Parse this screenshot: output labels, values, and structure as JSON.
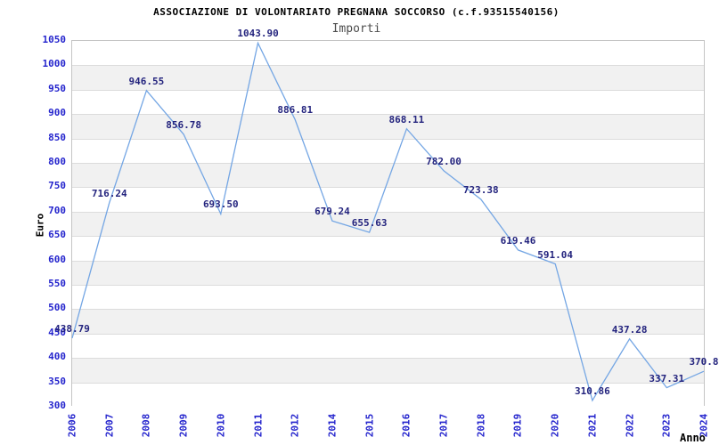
{
  "header": {
    "title": "ASSOCIAZIONE DI VOLONTARIATO PREGNANA SOCCORSO (c.f.93515540156)",
    "subtitle": "Importi"
  },
  "y_axis": {
    "label": "Euro",
    "min": 300,
    "max": 1050,
    "step": 50,
    "tick_labels": [
      "1050",
      "1000",
      "950",
      "900",
      "850",
      "800",
      "750",
      "700",
      "650",
      "600",
      "550",
      "500",
      "450",
      "400",
      "350",
      "300"
    ],
    "tick_color": "#2424cd"
  },
  "x_axis": {
    "label": "Anno",
    "tick_labels": [
      "2006",
      "2007",
      "2008",
      "2009",
      "2010",
      "2011",
      "2012",
      "2014",
      "2015",
      "2016",
      "2017",
      "2018",
      "2019",
      "2020",
      "2021",
      "2022",
      "2023",
      "2024"
    ],
    "tick_color": "#2424cd"
  },
  "chart_data": {
    "type": "line",
    "title": "ASSOCIAZIONE DI VOLONTARIATO PREGNANA SOCCORSO (c.f.93515540156)",
    "subtitle": "Importi",
    "xlabel": "Anno",
    "ylabel": "Euro",
    "x": [
      "2006",
      "2007",
      "2008",
      "2009",
      "2010",
      "2011",
      "2012",
      "2014",
      "2015",
      "2016",
      "2017",
      "2018",
      "2019",
      "2020",
      "2021",
      "2022",
      "2023",
      "2024"
    ],
    "values": [
      438.79,
      716.24,
      946.55,
      856.78,
      693.5,
      1043.9,
      886.81,
      679.24,
      655.63,
      868.11,
      782.0,
      723.38,
      619.46,
      591.04,
      310.86,
      437.28,
      337.31,
      370.8
    ],
    "point_labels": [
      "438.79",
      "716.24",
      "946.55",
      "856.78",
      "693.50",
      "1043.90",
      "886.81",
      "679.24",
      "655.63",
      "868.11",
      "782.00",
      "723.38",
      "619.46",
      "591.04",
      "310.86",
      "437.28",
      "337.31",
      "370.8"
    ],
    "ylim": [
      300,
      1050
    ],
    "grid": "horizontal",
    "legend_position": "none",
    "line_color": "#74a6e4",
    "label_color": "#24247e",
    "band_color": "#f1f1f1",
    "missing_years_note": "2013 not present on axis"
  }
}
